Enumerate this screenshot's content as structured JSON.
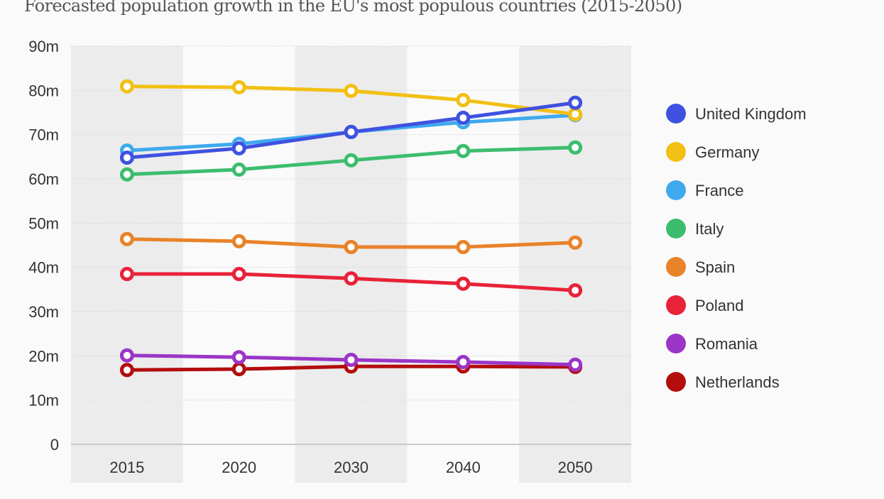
{
  "chart_data": {
    "type": "line",
    "title": "Forecasted population growth in the EU's most populous countries (2015-2050)",
    "xlabel": "",
    "ylabel": "",
    "categories": [
      "2015",
      "2020",
      "2030",
      "2040",
      "2050"
    ],
    "ylim": [
      0,
      90
    ],
    "yticks": [
      0,
      10,
      20,
      30,
      40,
      50,
      60,
      70,
      80,
      90
    ],
    "ytick_labels": [
      "0",
      "10m",
      "20m",
      "30m",
      "40m",
      "50m",
      "60m",
      "70m",
      "80m",
      "90m"
    ],
    "grid": true,
    "legend_position": "right",
    "series": [
      {
        "name": "United Kingdom",
        "color": "#3f51e0",
        "values": [
          64.8,
          66.9,
          70.6,
          73.8,
          77.2
        ]
      },
      {
        "name": "Germany",
        "color": "#f2c014",
        "values": [
          80.9,
          80.7,
          79.9,
          77.8,
          74.6
        ]
      },
      {
        "name": "France",
        "color": "#3fa9ee",
        "values": [
          66.4,
          67.9,
          70.6,
          72.8,
          74.4
        ]
      },
      {
        "name": "Italy",
        "color": "#3cbd6e",
        "values": [
          61.0,
          62.1,
          64.2,
          66.3,
          67.1
        ]
      },
      {
        "name": "Spain",
        "color": "#e8832a",
        "values": [
          46.4,
          45.9,
          44.6,
          44.6,
          45.6
        ]
      },
      {
        "name": "Poland",
        "color": "#e82238",
        "values": [
          38.5,
          38.5,
          37.5,
          36.3,
          34.8
        ]
      },
      {
        "name": "Romania",
        "color": "#9b35c8",
        "values": [
          20.1,
          19.7,
          19.1,
          18.6,
          18.0
        ]
      },
      {
        "name": "Netherlands",
        "color": "#b30d0d",
        "values": [
          16.8,
          17.0,
          17.6,
          17.6,
          17.5
        ]
      }
    ]
  }
}
